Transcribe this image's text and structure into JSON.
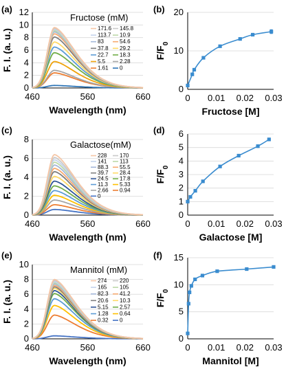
{
  "chart_data": [
    {
      "panel": "(a)",
      "type": "line",
      "title": "Fructose (mM)",
      "xlabel": "Wavelength (nm)",
      "ylabel": "F. I. (a. u.)",
      "xlim": [
        460,
        660
      ],
      "ylim": [
        0,
        12
      ],
      "xticks": [
        460,
        560,
        660
      ],
      "yticks": [
        0,
        2,
        4,
        6,
        8,
        10,
        12
      ],
      "peak_wavelength": 500,
      "legend_columns": 2,
      "series": [
        {
          "name": "171.6",
          "peak": 9.6,
          "color": "#f5c6a6"
        },
        {
          "name": "145.8",
          "peak": 9.45,
          "color": "#c9c9c9"
        },
        {
          "name": "113.7",
          "peak": 9.3,
          "color": "#c5d4ec"
        },
        {
          "name": "10.9",
          "peak": 9.1,
          "color": "#bcd9a8"
        },
        {
          "name": "83",
          "peak": 8.9,
          "color": "#a3b7d9"
        },
        {
          "name": "54.6",
          "peak": 8.6,
          "color": "#f7a96e"
        },
        {
          "name": "37.8",
          "peak": 8.1,
          "color": "#7f7f7f"
        },
        {
          "name": "29.2",
          "peak": 7.3,
          "color": "#ffd966"
        },
        {
          "name": "22.7",
          "peak": 6.5,
          "color": "#5b9bd5"
        },
        {
          "name": "18.3",
          "peak": 5.6,
          "color": "#70ad47"
        },
        {
          "name": "5.5",
          "peak": 4.2,
          "color": "#f0a30a"
        },
        {
          "name": "2.28",
          "peak": 2.8,
          "color": "#a5a5a5"
        },
        {
          "name": "1.61",
          "peak": 2.4,
          "color": "#ed7d31"
        },
        {
          "name": "0",
          "peak": 0.4,
          "color": "#2e75b6"
        }
      ]
    },
    {
      "panel": "(b)",
      "type": "line",
      "xlabel": "Fructose [M]",
      "ylabel": "F/F0",
      "xlim": [
        0,
        0.03
      ],
      "ylim": [
        0,
        20
      ],
      "xticks": [
        "0",
        "0.01",
        "0.02",
        "0.03"
      ],
      "yticks": [
        "0",
        "10",
        "20"
      ],
      "color": "#3a8ccf",
      "x": [
        0,
        0.00161,
        0.00228,
        0.0055,
        0.0113,
        0.0183,
        0.0227,
        0.0292
      ],
      "y": [
        1.0,
        3.9,
        5.1,
        8.2,
        11.2,
        13.1,
        14.2,
        15.0
      ],
      "errors": [
        0,
        0.2,
        0.2,
        0.3,
        0.3,
        0.3,
        0.3,
        0.5
      ]
    },
    {
      "panel": "(c)",
      "type": "line",
      "title": "Galactose(mM)",
      "xlabel": "Wavelength (nm)",
      "ylabel": "F. I. (a. u.)",
      "xlim": [
        460,
        660
      ],
      "ylim": [
        0,
        8
      ],
      "xticks": [
        460,
        560,
        660
      ],
      "yticks": [
        0,
        2,
        4,
        6,
        8
      ],
      "peak_wavelength": 500,
      "legend_columns": 2,
      "series": [
        {
          "name": "228",
          "peak": 6.4,
          "color": "#f5c6a6"
        },
        {
          "name": "170",
          "peak": 6.1,
          "color": "#c9c9c9"
        },
        {
          "name": "141",
          "peak": 5.85,
          "color": "#c5d4ec"
        },
        {
          "name": "113",
          "peak": 5.6,
          "color": "#bcd9a8"
        },
        {
          "name": "88.3",
          "peak": 5.3,
          "color": "#a3b7d9"
        },
        {
          "name": "55.5",
          "peak": 4.95,
          "color": "#f7a96e"
        },
        {
          "name": "39.7",
          "peak": 4.6,
          "color": "#7f7f7f"
        },
        {
          "name": "28.4",
          "peak": 4.1,
          "color": "#ffd966"
        },
        {
          "name": "24.5",
          "peak": 3.6,
          "color": "#2f5597"
        },
        {
          "name": "17.8",
          "peak": 3.1,
          "color": "#70ad47"
        },
        {
          "name": "11.3",
          "peak": 2.6,
          "color": "#5b9bd5"
        },
        {
          "name": "5.33",
          "peak": 2.1,
          "color": "#ffc000"
        },
        {
          "name": "2.66",
          "peak": 1.6,
          "color": "#a5a5a5"
        },
        {
          "name": "0.94",
          "peak": 1.1,
          "color": "#ed7d31"
        },
        {
          "name": "0",
          "peak": 0.6,
          "color": "#4472c4"
        }
      ]
    },
    {
      "panel": "(d)",
      "type": "line",
      "xlabel": "Galactose [M]",
      "ylabel": "F/F0",
      "xlim": [
        0,
        0.03
      ],
      "ylim": [
        0,
        6
      ],
      "xticks": [
        "0",
        "0.01",
        "0.02",
        "0.03"
      ],
      "yticks": [
        "0",
        "1",
        "2",
        "3",
        "4",
        "5",
        "6"
      ],
      "color": "#3a8ccf",
      "x": [
        0,
        0.00094,
        0.00266,
        0.00533,
        0.0113,
        0.0178,
        0.0245,
        0.0284
      ],
      "y": [
        1.0,
        1.35,
        1.8,
        2.5,
        3.6,
        4.4,
        5.1,
        5.6
      ],
      "errors": [
        0,
        0.05,
        0.05,
        0.07,
        0.08,
        0.08,
        0.1,
        0.1
      ]
    },
    {
      "panel": "(e)",
      "type": "line",
      "title": "Mannitol (mM)",
      "xlabel": "Wavelength (nm)",
      "ylabel": "F. I. (a. u.)",
      "xlim": [
        460,
        660
      ],
      "ylim": [
        0,
        10
      ],
      "xticks": [
        460,
        560,
        660
      ],
      "yticks": [
        0,
        2,
        4,
        6,
        8,
        10
      ],
      "peak_wavelength": 500,
      "legend_columns": 2,
      "series": [
        {
          "name": "274",
          "peak": 8.0,
          "color": "#f5c6a6"
        },
        {
          "name": "220",
          "peak": 7.85,
          "color": "#c9c9c9"
        },
        {
          "name": "165",
          "peak": 7.7,
          "color": "#c5d4ec"
        },
        {
          "name": "105",
          "peak": 7.55,
          "color": "#bcd9a8"
        },
        {
          "name": "82.3",
          "peak": 7.4,
          "color": "#a3b7d9"
        },
        {
          "name": "41.2",
          "peak": 7.2,
          "color": "#f7a96e"
        },
        {
          "name": "20.6",
          "peak": 7.0,
          "color": "#7f7f7f"
        },
        {
          "name": "10.3",
          "peak": 6.8,
          "color": "#ffd966"
        },
        {
          "name": "5.15",
          "peak": 6.5,
          "color": "#2f5597"
        },
        {
          "name": "2.57",
          "peak": 6.1,
          "color": "#70ad47"
        },
        {
          "name": "1.28",
          "peak": 5.4,
          "color": "#5b9bd5"
        },
        {
          "name": "0.64",
          "peak": 4.5,
          "color": "#ffc000"
        },
        {
          "name": "0.32",
          "peak": 3.2,
          "color": "#ed7d31"
        },
        {
          "name": "0",
          "peak": 0.4,
          "color": "#4472c4"
        }
      ]
    },
    {
      "panel": "(f)",
      "type": "line",
      "xlabel": "Mannitol [M]",
      "ylabel": "F/F0",
      "xlim": [
        0,
        0.03
      ],
      "ylim": [
        0,
        15
      ],
      "xticks": [
        "0",
        "0.01",
        "0.02",
        "0.03"
      ],
      "yticks": [
        "0",
        "5",
        "10",
        "15"
      ],
      "color": "#3a8ccf",
      "x": [
        0,
        0.00032,
        0.00064,
        0.00128,
        0.00257,
        0.00515,
        0.0103,
        0.0206,
        0.03
      ],
      "y": [
        1.0,
        6.5,
        8.6,
        9.8,
        11.0,
        11.7,
        12.5,
        12.9,
        13.3
      ],
      "errors": [
        0,
        0.2,
        0.2,
        0.2,
        0.2,
        0.2,
        0.2,
        0.2,
        0
      ]
    }
  ]
}
